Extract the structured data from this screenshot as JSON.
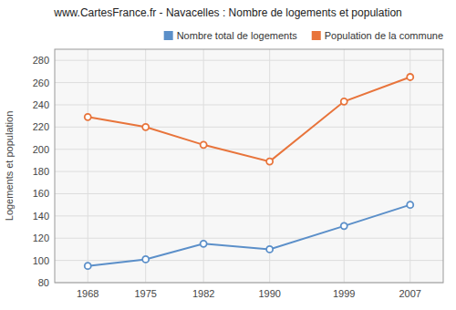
{
  "chart_data": {
    "type": "line",
    "title": "www.CartesFrance.fr - Navacelles : Nombre de logements et population",
    "y_label": "Logements et population",
    "x": [
      1968,
      1975,
      1982,
      1990,
      1999,
      2007
    ],
    "xlim": [
      1964,
      2011
    ],
    "xticks": [
      1968,
      1975,
      1982,
      1990,
      1999,
      2007
    ],
    "ylim": [
      80,
      290
    ],
    "yticks": [
      80,
      100,
      120,
      140,
      160,
      180,
      200,
      220,
      240,
      260,
      280
    ],
    "grid": true,
    "legend": "upper right",
    "marker": "circle",
    "series": [
      {
        "name": "Nombre total de logements",
        "color": "#5b8fc9",
        "values": [
          95,
          101,
          115,
          110,
          131,
          150
        ]
      },
      {
        "name": "Population de la commune",
        "color": "#e8743b",
        "values": [
          229,
          220,
          204,
          189,
          243,
          265
        ]
      }
    ]
  }
}
